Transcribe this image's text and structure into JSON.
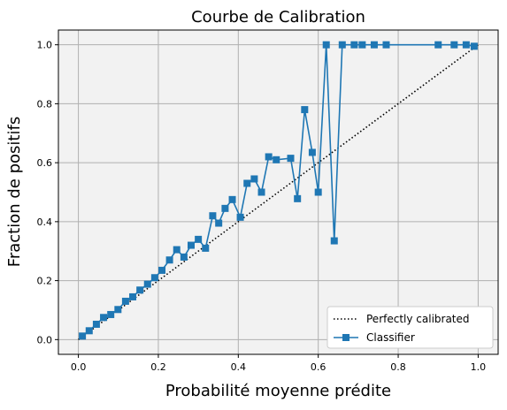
{
  "chart_data": {
    "type": "line",
    "title": "Courbe de Calibration",
    "xlabel": "Probabilité moyenne prédite",
    "ylabel": "Fraction de positifs",
    "xlim": [
      -0.05,
      1.05
    ],
    "ylim": [
      -0.05,
      1.05
    ],
    "xticks": [
      0.0,
      0.2,
      0.4,
      0.6,
      0.8,
      1.0
    ],
    "yticks": [
      0.0,
      0.2,
      0.4,
      0.6,
      0.8,
      1.0
    ],
    "xtick_labels": [
      "0.0",
      "0.2",
      "0.4",
      "0.6",
      "0.8",
      "1.0"
    ],
    "ytick_labels": [
      "0.0",
      "0.2",
      "0.4",
      "0.6",
      "0.8",
      "1.0"
    ],
    "grid": true,
    "legend_position": "lower-right",
    "series": [
      {
        "name": "Perfectly calibrated",
        "style": "dotted",
        "color": "#000000",
        "x": [
          0,
          1
        ],
        "y": [
          0,
          1
        ]
      },
      {
        "name": "Classifier",
        "style": "solid",
        "marker": "square",
        "color": "#1f77b4",
        "x": [
          0.01,
          0.027,
          0.045,
          0.063,
          0.081,
          0.099,
          0.118,
          0.136,
          0.154,
          0.173,
          0.191,
          0.209,
          0.228,
          0.246,
          0.264,
          0.282,
          0.3,
          0.318,
          0.336,
          0.351,
          0.367,
          0.385,
          0.405,
          0.422,
          0.44,
          0.458,
          0.476,
          0.495,
          0.531,
          0.548,
          0.566,
          0.585,
          0.6,
          0.62,
          0.64,
          0.66,
          0.69,
          0.71,
          0.74,
          0.77,
          0.9,
          0.94,
          0.97,
          0.99
        ],
        "y": [
          0.012,
          0.03,
          0.052,
          0.075,
          0.085,
          0.102,
          0.13,
          0.145,
          0.168,
          0.188,
          0.21,
          0.235,
          0.27,
          0.305,
          0.28,
          0.32,
          0.34,
          0.31,
          0.42,
          0.395,
          0.445,
          0.475,
          0.415,
          0.53,
          0.545,
          0.5,
          0.62,
          0.61,
          0.615,
          0.478,
          0.78,
          0.635,
          0.5,
          1.0,
          0.335,
          1.0,
          1.0,
          1.0,
          1.0,
          1.0,
          1.0,
          1.0,
          1.0,
          0.995
        ]
      }
    ]
  }
}
